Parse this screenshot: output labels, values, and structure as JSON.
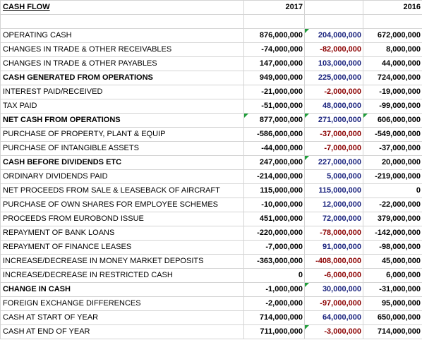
{
  "header": {
    "title": "CASH FLOW",
    "year_a": "2017",
    "year_b": "2016"
  },
  "rows": [
    {
      "label": "OPERATING CASH",
      "bold": false,
      "y2017": "876,000,000",
      "change": "204,000,000",
      "change_sign": "pos",
      "y2016": "672,000,000",
      "flag_change": true,
      "flag_2016": false
    },
    {
      "label": "CHANGES IN TRADE & OTHER RECEIVABLES",
      "bold": false,
      "y2017": "-74,000,000",
      "change": "-82,000,000",
      "change_sign": "neg",
      "y2016": "8,000,000",
      "flag_change": false,
      "flag_2016": false
    },
    {
      "label": "CHANGES IN TRADE & OTHER PAYABLES",
      "bold": false,
      "y2017": "147,000,000",
      "change": "103,000,000",
      "change_sign": "pos",
      "y2016": "44,000,000",
      "flag_change": false,
      "flag_2016": false
    },
    {
      "label": "CASH GENERATED FROM OPERATIONS",
      "bold": true,
      "y2017": "949,000,000",
      "change": "225,000,000",
      "change_sign": "pos",
      "y2016": "724,000,000",
      "flag_change": false,
      "flag_2016": false
    },
    {
      "label": "INTEREST PAID/RECEIVED",
      "bold": false,
      "y2017": "-21,000,000",
      "change": "-2,000,000",
      "change_sign": "neg",
      "y2016": "-19,000,000",
      "flag_change": false,
      "flag_2016": false
    },
    {
      "label": "TAX PAID",
      "bold": false,
      "y2017": "-51,000,000",
      "change": "48,000,000",
      "change_sign": "pos",
      "y2016": "-99,000,000",
      "flag_change": false,
      "flag_2016": false
    },
    {
      "label": "NET CASH FROM OPERATIONS",
      "bold": true,
      "y2017": "877,000,000",
      "change": "271,000,000",
      "change_sign": "pos",
      "y2016": "606,000,000",
      "flag_change": true,
      "flag_2016": true,
      "flag_2017": true
    },
    {
      "label": "PURCHASE OF PROPERTY, PLANT & EQUIP",
      "bold": false,
      "y2017": "-586,000,000",
      "change": "-37,000,000",
      "change_sign": "neg",
      "y2016": "-549,000,000",
      "flag_change": false,
      "flag_2016": false
    },
    {
      "label": "PURCHASE OF INTANGIBLE ASSETS",
      "bold": false,
      "y2017": "-44,000,000",
      "change": "-7,000,000",
      "change_sign": "neg",
      "y2016": "-37,000,000",
      "flag_change": false,
      "flag_2016": false
    },
    {
      "label": "CASH BEFORE DIVIDENDS ETC",
      "bold": true,
      "y2017": "247,000,000",
      "change": "227,000,000",
      "change_sign": "pos",
      "y2016": "20,000,000",
      "flag_change": true,
      "flag_2016": false
    },
    {
      "label": "ORDINARY DIVIDENDS PAID",
      "bold": false,
      "y2017": "-214,000,000",
      "change": "5,000,000",
      "change_sign": "pos",
      "y2016": "-219,000,000",
      "flag_change": false,
      "flag_2016": false
    },
    {
      "label": "NET PROCEEDS FROM SALE & LEASEBACK OF AIRCRAFT",
      "bold": false,
      "y2017": "115,000,000",
      "change": "115,000,000",
      "change_sign": "pos",
      "y2016": "0",
      "flag_change": false,
      "flag_2016": false
    },
    {
      "label": "PURCHASE OF OWN SHARES FOR EMPLOYEE SCHEMES",
      "bold": false,
      "y2017": "-10,000,000",
      "change": "12,000,000",
      "change_sign": "pos",
      "y2016": "-22,000,000",
      "flag_change": false,
      "flag_2016": false
    },
    {
      "label": "PROCEEDS FROM EUROBOND ISSUE",
      "bold": false,
      "y2017": "451,000,000",
      "change": "72,000,000",
      "change_sign": "pos",
      "y2016": "379,000,000",
      "flag_change": false,
      "flag_2016": false
    },
    {
      "label": "REPAYMENT OF BANK LOANS",
      "bold": false,
      "y2017": "-220,000,000",
      "change": "-78,000,000",
      "change_sign": "neg",
      "y2016": "-142,000,000",
      "flag_change": false,
      "flag_2016": false
    },
    {
      "label": "REPAYMENT OF FINANCE LEASES",
      "bold": false,
      "y2017": "-7,000,000",
      "change": "91,000,000",
      "change_sign": "pos",
      "y2016": "-98,000,000",
      "flag_change": false,
      "flag_2016": false
    },
    {
      "label": "INCREASE/DECREASE IN MONEY MARKET DEPOSITS",
      "bold": false,
      "y2017": "-363,000,000",
      "change": "-408,000,000",
      "change_sign": "neg",
      "y2016": "45,000,000",
      "flag_change": false,
      "flag_2016": false
    },
    {
      "label": "INCREASE/DECREASE IN RESTRICTED CASH",
      "bold": false,
      "y2017": "0",
      "change": "-6,000,000",
      "change_sign": "neg",
      "y2016": "6,000,000",
      "flag_change": false,
      "flag_2016": false
    },
    {
      "label": "CHANGE IN CASH",
      "bold": true,
      "y2017": "-1,000,000",
      "change": "30,000,000",
      "change_sign": "pos",
      "y2016": "-31,000,000",
      "flag_change": true,
      "flag_2016": false
    },
    {
      "label": "FOREIGN EXCHANGE DIFFERENCES",
      "bold": false,
      "y2017": "-2,000,000",
      "change": "-97,000,000",
      "change_sign": "neg",
      "y2016": "95,000,000",
      "flag_change": false,
      "flag_2016": false
    },
    {
      "label": "CASH AT START OF YEAR",
      "bold": false,
      "y2017": "714,000,000",
      "change": "64,000,000",
      "change_sign": "pos",
      "y2016": "650,000,000",
      "flag_change": false,
      "flag_2016": false
    },
    {
      "label": "CASH AT END OF YEAR",
      "bold": false,
      "y2017": "711,000,000",
      "change": "-3,000,000",
      "change_sign": "neg",
      "y2016": "714,000,000",
      "flag_change": true,
      "flag_2016": false
    }
  ],
  "colors": {
    "positive_change": "#1a237e",
    "negative_change": "#8b0000",
    "gridline": "#d4d4d4",
    "flag_marker": "#1f9d3a"
  }
}
